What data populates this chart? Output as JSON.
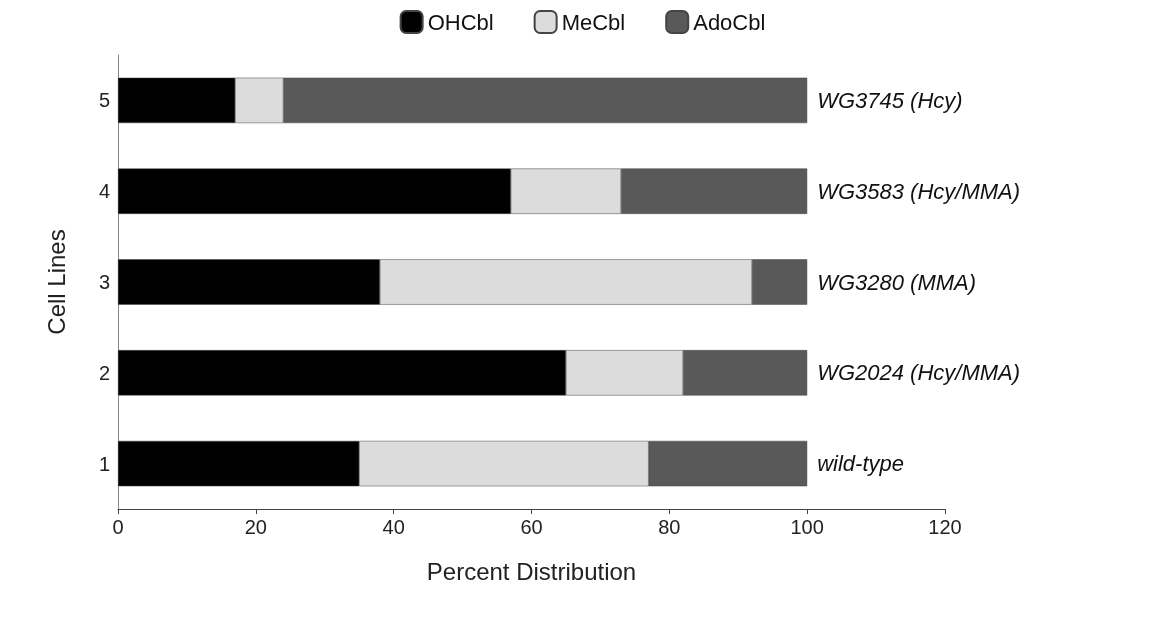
{
  "chart_data": {
    "type": "bar",
    "orientation": "horizontal",
    "stacked": true,
    "xlabel": "Percent Distribution",
    "ylabel": "Cell Lines",
    "categories": [
      "5",
      "4",
      "3",
      "2",
      "1"
    ],
    "series": [
      {
        "name": "OHCbl",
        "color": "#000000",
        "values": [
          17,
          57,
          38,
          65,
          35
        ]
      },
      {
        "name": "MeCbl",
        "color": "#dcdcdc",
        "values": [
          7,
          16,
          54,
          17,
          42
        ]
      },
      {
        "name": "AdoCbl",
        "color": "#595959",
        "values": [
          76,
          27,
          8,
          18,
          23
        ]
      }
    ],
    "xlim": [
      0,
      120
    ],
    "xticks": [
      0,
      20,
      40,
      60,
      80,
      100,
      120
    ],
    "grid": false,
    "legend": "top",
    "annotations": [
      "WG3745 (Hcy)",
      "WG3583 (Hcy/MMA)",
      "WG3280 (MMA)",
      "WG2024 (Hcy/MMA)",
      "wild-type"
    ]
  }
}
